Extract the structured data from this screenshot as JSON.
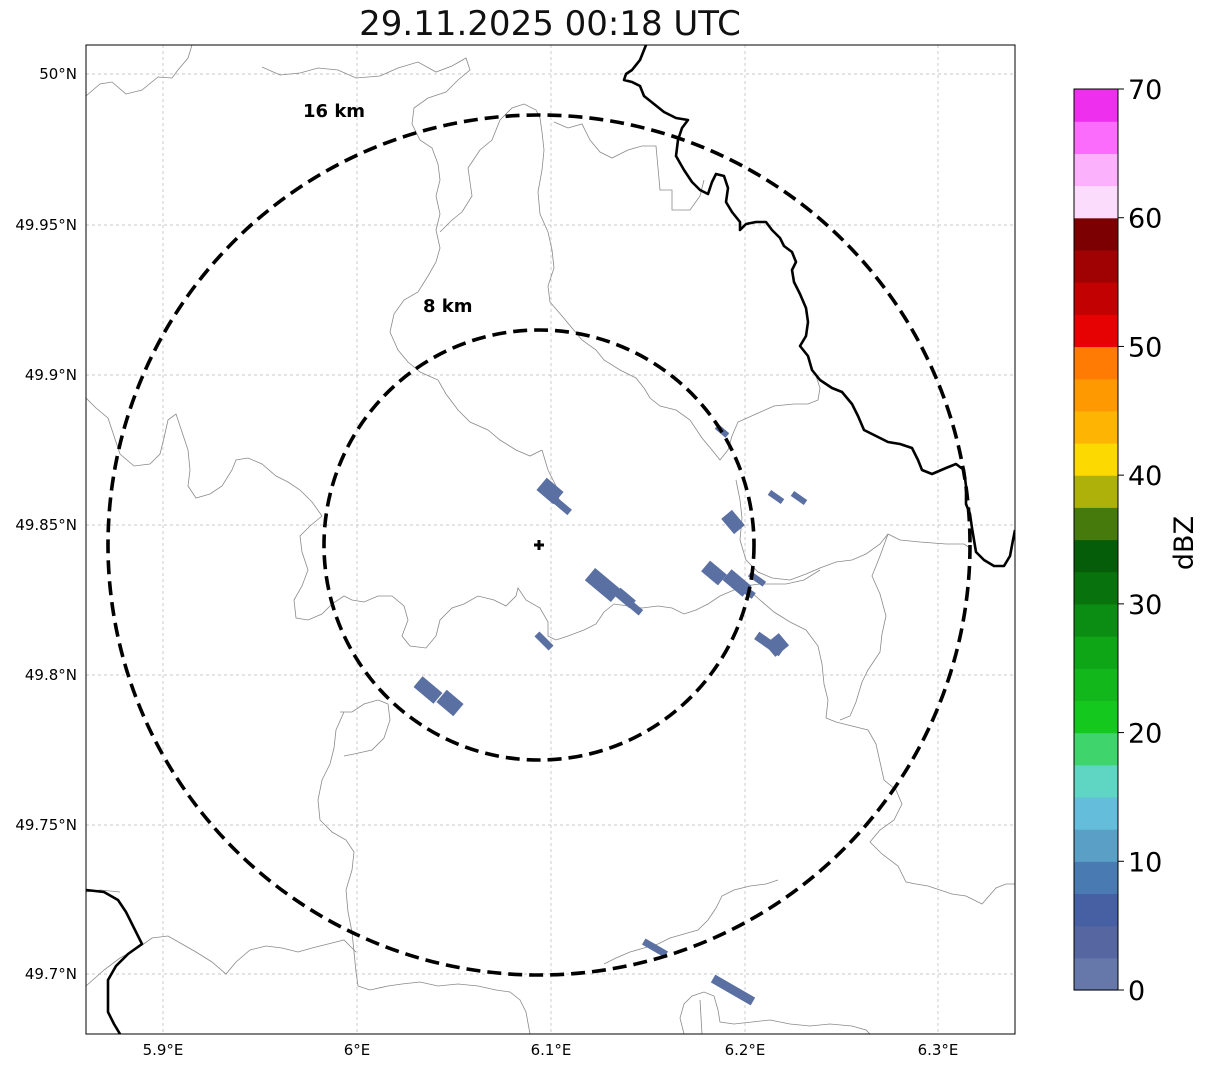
{
  "title": "29.11.2025 00:18 UTC",
  "map": {
    "lat_ticks": [
      "50°N",
      "49.95°N",
      "49.9°N",
      "49.85°N",
      "49.8°N",
      "49.75°N",
      "49.7°N"
    ],
    "lon_ticks": [
      "5.9°E",
      "6°E",
      "6.1°E",
      "6.2°E",
      "6.3°E"
    ],
    "radar_site": {
      "lat": 49.8435,
      "lon": 6.0945
    },
    "rings": [
      {
        "label": "16 km",
        "radius_km": 16
      },
      {
        "label": "8 km",
        "radius_km": 8
      }
    ],
    "echo_color": "#5a6fa2"
  },
  "colorbar": {
    "label": "dBZ",
    "ticks": [
      "0",
      "10",
      "20",
      "30",
      "40",
      "50",
      "60",
      "70"
    ],
    "colors": [
      "#6677aa",
      "#5566a0",
      "#4760a3",
      "#4a7ab2",
      "#5a9fc6",
      "#64bedb",
      "#5fd6c3",
      "#3fd46c",
      "#14c81e",
      "#12b81b",
      "#0ea517",
      "#0b8c12",
      "#08720d",
      "#055c09",
      "#477a0c",
      "#aeb10a",
      "#fcd901",
      "#fdb402",
      "#fe9902",
      "#ff7b03",
      "#e60103",
      "#c10102",
      "#a00102",
      "#7c0002",
      "#fcdcfc",
      "#fcb1fc",
      "#fc6cfc",
      "#ee30ee"
    ]
  }
}
